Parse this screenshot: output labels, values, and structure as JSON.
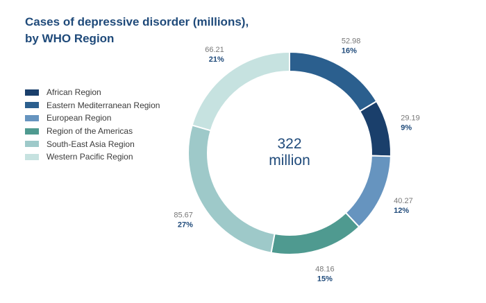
{
  "chart_data": {
    "type": "pie",
    "title_line1": "Cases of depressive disorder (millions),",
    "title_line2": "by WHO Region",
    "center_value": "322",
    "center_unit": "million",
    "legend_position": "left",
    "slices": [
      {
        "name": "African Region",
        "value": 29.19,
        "value_label": "29.19",
        "percent_label": "9%",
        "color": "#1a3f6b"
      },
      {
        "name": "Eastern Mediterranean Region",
        "value": 52.98,
        "value_label": "52.98",
        "percent_label": "16%",
        "color": "#2b5f8e"
      },
      {
        "name": "European Region",
        "value": 40.27,
        "value_label": "40.27",
        "percent_label": "12%",
        "color": "#6694bf"
      },
      {
        "name": "Region of the Americas",
        "value": 48.16,
        "value_label": "48.16",
        "percent_label": "15%",
        "color": "#4f9a90"
      },
      {
        "name": "South-East Asia Region",
        "value": 85.67,
        "value_label": "85.67",
        "percent_label": "27%",
        "color": "#9ec9c9"
      },
      {
        "name": "Western Pacific Region",
        "value": 66.21,
        "value_label": "66.21",
        "percent_label": "21%",
        "color": "#c6e2e0"
      }
    ]
  }
}
